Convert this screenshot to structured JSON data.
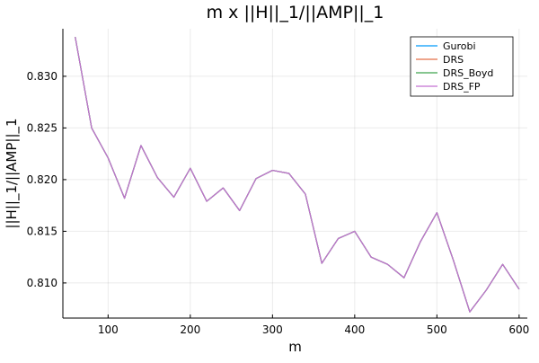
{
  "chart_data": {
    "type": "line",
    "title": "m x ||H||_1/||AMP||_1",
    "xlabel": "m",
    "ylabel": "||H||_1/||AMP||_1",
    "xlim": [
      45,
      610
    ],
    "ylim": [
      0.8066,
      0.8346
    ],
    "xticks": [
      100,
      200,
      300,
      400,
      500,
      600
    ],
    "yticks": [
      0.81,
      0.815,
      0.82,
      0.825,
      0.83
    ],
    "xtick_labels": [
      "100",
      "200",
      "300",
      "400",
      "500",
      "600"
    ],
    "ytick_labels": [
      "0.810",
      "0.815",
      "0.820",
      "0.825",
      "0.830"
    ],
    "grid": true,
    "legend_position": "top-right",
    "x": [
      60,
      80,
      100,
      120,
      140,
      160,
      180,
      200,
      220,
      240,
      260,
      280,
      300,
      320,
      340,
      360,
      380,
      400,
      420,
      440,
      460,
      480,
      500,
      520,
      540,
      560,
      580,
      600
    ],
    "series": [
      {
        "name": "Gurobi",
        "color": "#009AFA",
        "values": [
          0.8338,
          0.825,
          0.8221,
          0.8182,
          0.8233,
          0.8202,
          0.8183,
          0.8211,
          0.8179,
          0.8192,
          0.817,
          0.8201,
          0.8209,
          0.8206,
          0.8186,
          0.8119,
          0.8143,
          0.815,
          0.8125,
          0.8118,
          0.8105,
          0.814,
          0.8168,
          0.8122,
          0.8072,
          0.8093,
          0.8118,
          0.8094
        ]
      },
      {
        "name": "DRS",
        "color": "#E36F47",
        "values": [
          0.8338,
          0.825,
          0.8221,
          0.8182,
          0.8233,
          0.8202,
          0.8183,
          0.8211,
          0.8179,
          0.8192,
          0.817,
          0.8201,
          0.8209,
          0.8206,
          0.8186,
          0.8119,
          0.8143,
          0.815,
          0.8125,
          0.8118,
          0.8105,
          0.814,
          0.8168,
          0.8122,
          0.8072,
          0.8093,
          0.8118,
          0.8094
        ]
      },
      {
        "name": "DRS_Boyd",
        "color": "#3EA44E",
        "values": [
          0.8338,
          0.825,
          0.8221,
          0.8182,
          0.8233,
          0.8202,
          0.8183,
          0.8211,
          0.8179,
          0.8192,
          0.817,
          0.8201,
          0.8209,
          0.8206,
          0.8186,
          0.8119,
          0.8143,
          0.815,
          0.8125,
          0.8118,
          0.8105,
          0.814,
          0.8168,
          0.8122,
          0.8072,
          0.8093,
          0.8118,
          0.8094
        ]
      },
      {
        "name": "DRS_FP",
        "color": "#C371D2",
        "values": [
          0.8338,
          0.825,
          0.8221,
          0.8182,
          0.8233,
          0.8202,
          0.8183,
          0.8211,
          0.8179,
          0.8192,
          0.817,
          0.8201,
          0.8209,
          0.8206,
          0.8186,
          0.8119,
          0.8143,
          0.815,
          0.8125,
          0.8118,
          0.8105,
          0.814,
          0.8168,
          0.8122,
          0.8072,
          0.8093,
          0.8118,
          0.8094
        ]
      }
    ]
  }
}
